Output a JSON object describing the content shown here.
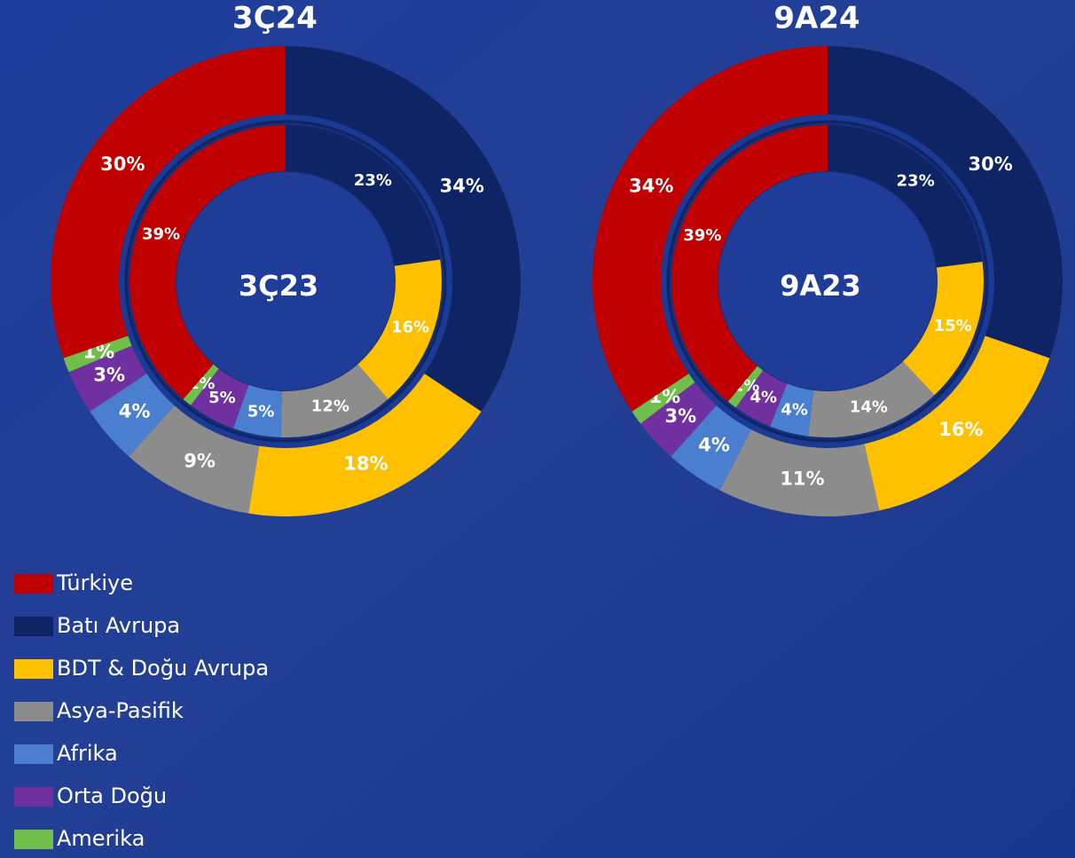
{
  "chart_data": [
    {
      "type": "donut",
      "series": [
        {
          "name": "3Ç24",
          "values": [
            30,
            34,
            18,
            9,
            4,
            3,
            1
          ],
          "value_labels": [
            "30%",
            "34%",
            "18%",
            "9%",
            "4%",
            "3%",
            "1%"
          ]
        },
        {
          "name": "3Ç23",
          "values": [
            39,
            23,
            16,
            12,
            5,
            5,
            1
          ],
          "value_labels": [
            "39%",
            "23%",
            "16%",
            "12%",
            "5%",
            "5%",
            "1%"
          ]
        }
      ]
    },
    {
      "type": "donut",
      "series": [
        {
          "name": "9A24",
          "values": [
            34,
            30,
            16,
            11,
            4,
            3,
            1
          ],
          "value_labels": [
            "34%",
            "30%",
            "16%",
            "11%",
            "4%",
            "3%",
            "1%"
          ]
        },
        {
          "name": "9A23",
          "values": [
            39,
            23,
            15,
            14,
            4,
            4,
            1
          ],
          "value_labels": [
            "39%",
            "23%",
            "15%",
            "14%",
            "4%",
            "4%",
            "1%"
          ]
        }
      ]
    }
  ],
  "legend": {
    "categories": [
      "Türkiye",
      "Batı Avrupa",
      "BDT & Doğu Avrupa",
      "Asya-Pasifik",
      "Afrika",
      "Orta Doğu",
      "Amerika"
    ],
    "colors": [
      "#c00000",
      "#0e2464",
      "#ffc000",
      "#8c8c8c",
      "#4a7fd0",
      "#7030a0",
      "#6fbf4a"
    ]
  }
}
